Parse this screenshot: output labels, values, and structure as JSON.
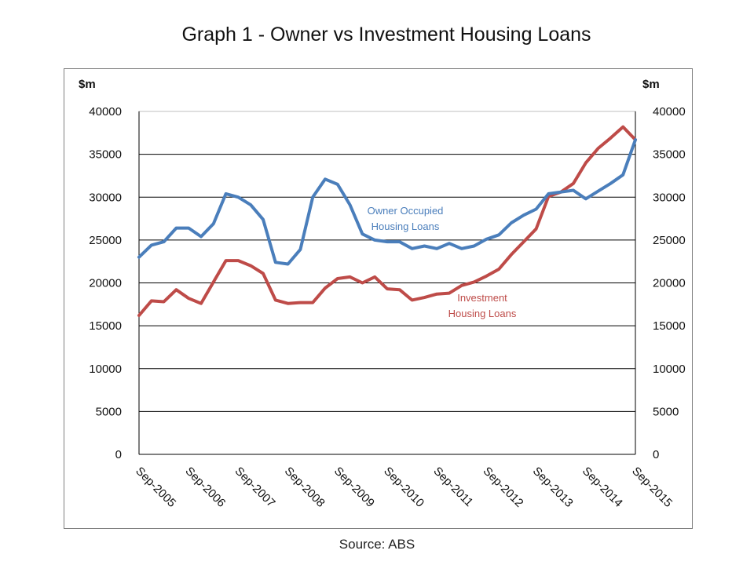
{
  "title": "Graph 1 - Owner vs Investment Housing Loans",
  "source": "Source:  ABS",
  "colors": {
    "owner": "#4a7ebb",
    "investment": "#be4b48",
    "grid": "#000000",
    "frame": "#7f7f7f"
  },
  "chart_data": {
    "type": "line",
    "title": "Graph 1 - Owner vs Investment Housing Loans",
    "ylabel_left": "$m",
    "ylabel_right": "$m",
    "ylim": [
      0,
      40000
    ],
    "yticks": [
      0,
      5000,
      10000,
      15000,
      20000,
      25000,
      30000,
      35000,
      40000
    ],
    "grid": true,
    "legend": "none",
    "xtick_labels": [
      "Sep-2005",
      "Sep-2006",
      "Sep-2007",
      "Sep-2008",
      "Sep-2009",
      "Sep-2010",
      "Sep-2011",
      "Sep-2012",
      "Sep-2013",
      "Sep-2014",
      "Sep-2015"
    ],
    "annotations": [
      {
        "series": "owner",
        "lines": [
          "Owner Occupied",
          "Housing Loans"
        ]
      },
      {
        "series": "investment",
        "lines": [
          "Investment",
          "Housing Loans"
        ]
      }
    ],
    "series": [
      {
        "key": "owner",
        "name": "Owner Occupied Housing Loans",
        "values": [
          23000,
          24400,
          24800,
          26400,
          26400,
          25400,
          26900,
          30400,
          30000,
          29100,
          27400,
          22400,
          22200,
          23900,
          30000,
          32100,
          31500,
          29100,
          25700,
          25000,
          24800,
          24800,
          24000,
          24300,
          24000,
          24600,
          24000,
          24300,
          25100,
          25600,
          27000,
          27900,
          28600,
          30400,
          30600,
          30800,
          29800,
          30700,
          31600,
          32600,
          36700
        ]
      },
      {
        "key": "investment",
        "name": "Investment Housing Loans",
        "values": [
          16200,
          17900,
          17800,
          19200,
          18200,
          17600,
          20100,
          22600,
          22600,
          22000,
          21100,
          18000,
          17600,
          17700,
          17700,
          19400,
          20500,
          20700,
          20000,
          20700,
          19300,
          19200,
          18000,
          18300,
          18700,
          18800,
          19700,
          20100,
          20800,
          21600,
          23300,
          24800,
          26300,
          30100,
          30600,
          31600,
          34000,
          35700,
          36900,
          38200,
          36700
        ]
      }
    ]
  }
}
